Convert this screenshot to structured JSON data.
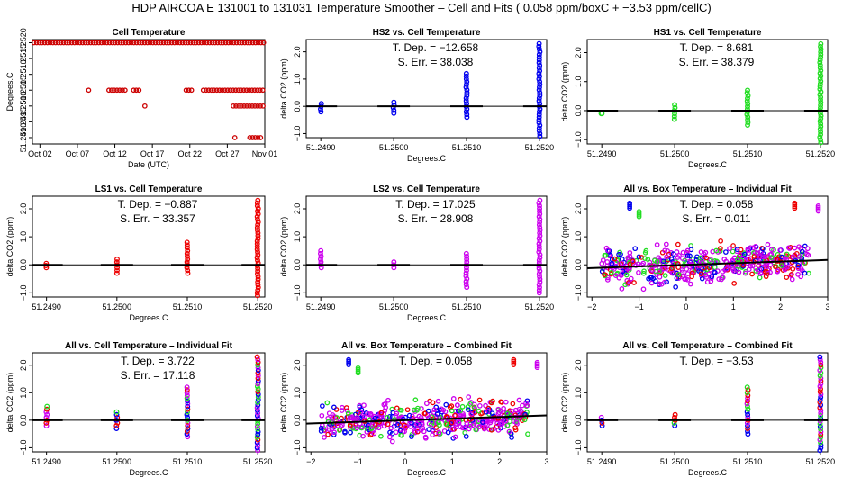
{
  "figure": {
    "title": "HDP   AIRCOA E   131001 to 131031   Temperature Smoother – Cell and Fits ( 0.058   ppm/boxC +   −3.53   ppm/cellC)"
  },
  "chart_data": [
    {
      "type": "scatter",
      "title": "Cell Temperature",
      "xlabel": "Date (UTC)",
      "ylabel": "Degrees.C",
      "x_ticks": [
        "Oct 02",
        "Oct 07",
        "Oct 12",
        "Oct 17",
        "Oct 22",
        "Oct 27",
        "Nov 01"
      ],
      "x_tick_days": [
        2,
        7,
        12,
        17,
        22,
        27,
        32
      ],
      "xlim": [
        1,
        32
      ],
      "y_ticks": [
        "51.2490",
        "51.2495",
        "51.2500",
        "51.2505",
        "51.2510",
        "51.2515",
        "51.2520"
      ],
      "y_tick_values": [
        51.249,
        51.2495,
        51.25,
        51.2505,
        51.251,
        51.2515,
        51.252
      ],
      "ylim": [
        51.2488,
        51.2521
      ],
      "color": "#cc0000",
      "series": [
        {
          "segments": [
            {
              "y": 51.252,
              "x_from": 1.2,
              "x_to": 32.0
            },
            {
              "y": 51.2505,
              "x_from": 8.5,
              "x_to": 8.7
            },
            {
              "y": 51.2505,
              "x_from": 11.2,
              "x_to": 13.5
            },
            {
              "y": 51.2505,
              "x_from": 14.5,
              "x_to": 15.5
            },
            {
              "y": 51.2505,
              "x_from": 21.5,
              "x_to": 22.5
            },
            {
              "y": 51.2505,
              "x_from": 23.8,
              "x_to": 32.0
            },
            {
              "y": 51.25,
              "x_from": 16.0,
              "x_to": 16.2
            },
            {
              "y": 51.25,
              "x_from": 27.8,
              "x_to": 32.0
            },
            {
              "y": 51.249,
              "x_from": 28.0,
              "x_to": 28.3
            },
            {
              "y": 51.249,
              "x_from": 30.0,
              "x_to": 31.8
            }
          ]
        }
      ]
    },
    {
      "type": "scatter",
      "title": "HS2 vs. Cell Temperature",
      "xlabel": "Degrees.C",
      "ylabel": "delta CO2 (ppm)",
      "x_ticks": [
        "51.2490",
        "51.2500",
        "51.2510",
        "51.2520"
      ],
      "x_tick_values": [
        51.249,
        51.25,
        51.251,
        51.252
      ],
      "xlim": [
        51.2488,
        51.2521
      ],
      "y_ticks": [
        "−1.0",
        "0.0",
        "1.0",
        "2.0"
      ],
      "y_tick_values": [
        -1,
        0,
        1,
        2
      ],
      "ylim": [
        -1.15,
        2.45
      ],
      "annotations": [
        "T. Dep. =  −12.658",
        "S. Err. =  38.038"
      ],
      "fit": {
        "slope": -12.658
      },
      "color": "#0000ee",
      "series": [
        {
          "columns": [
            {
              "x": 51.249,
              "y_from": -0.2,
              "y_to": 0.1
            },
            {
              "x": 51.25,
              "y_from": -0.25,
              "y_to": 0.15
            },
            {
              "x": 51.251,
              "y_from": -0.4,
              "y_to": 1.2
            },
            {
              "x": 51.252,
              "y_from": -1.1,
              "y_to": 2.3
            }
          ]
        }
      ]
    },
    {
      "type": "scatter",
      "title": "HS1 vs. Cell Temperature",
      "xlabel": "Degrees.C",
      "ylabel": "delta CO2 (ppm)",
      "x_ticks": [
        "51.2490",
        "51.2500",
        "51.2510",
        "51.2520"
      ],
      "x_tick_values": [
        51.249,
        51.25,
        51.251,
        51.252
      ],
      "xlim": [
        51.2488,
        51.2521
      ],
      "y_ticks": [
        "−1.0",
        "0.0",
        "1.0",
        "2.0"
      ],
      "y_tick_values": [
        -1,
        0,
        1,
        2
      ],
      "ylim": [
        -1.15,
        2.45
      ],
      "annotations": [
        "T. Dep. =  8.681",
        "S. Err. =  38.379"
      ],
      "fit": {
        "slope": 8.681
      },
      "color": "#22dd22",
      "series": [
        {
          "columns": [
            {
              "x": 51.249,
              "y_from": -0.1,
              "y_to": -0.1
            },
            {
              "x": 51.25,
              "y_from": -0.3,
              "y_to": 0.2
            },
            {
              "x": 51.251,
              "y_from": -0.5,
              "y_to": 0.7
            },
            {
              "x": 51.252,
              "y_from": -1.1,
              "y_to": 2.3
            }
          ]
        }
      ]
    },
    {
      "type": "scatter",
      "title": "LS1 vs. Cell Temperature",
      "xlabel": "Degrees.C",
      "ylabel": "delta CO2 (ppm)",
      "x_ticks": [
        "51.2490",
        "51.2500",
        "51.2510",
        "51.2520"
      ],
      "x_tick_values": [
        51.249,
        51.25,
        51.251,
        51.252
      ],
      "xlim": [
        51.2488,
        51.2521
      ],
      "y_ticks": [
        "−1.0",
        "0.0",
        "1.0",
        "2.0"
      ],
      "y_tick_values": [
        -1,
        0,
        1,
        2
      ],
      "ylim": [
        -1.15,
        2.45
      ],
      "annotations": [
        "T. Dep. =  −0.887",
        "S. Err. =  33.357"
      ],
      "fit": {
        "slope": -0.887
      },
      "color": "#ee0000",
      "series": [
        {
          "columns": [
            {
              "x": 51.249,
              "y_from": -0.1,
              "y_to": 0.05
            },
            {
              "x": 51.25,
              "y_from": -0.3,
              "y_to": 0.2
            },
            {
              "x": 51.251,
              "y_from": -0.3,
              "y_to": 0.8
            },
            {
              "x": 51.252,
              "y_from": -1.1,
              "y_to": 2.3
            }
          ]
        }
      ]
    },
    {
      "type": "scatter",
      "title": "LS2 vs. Cell Temperature",
      "xlabel": "Degrees.C",
      "ylabel": "delta CO2 (ppm)",
      "x_ticks": [
        "51.2490",
        "51.2500",
        "51.2510",
        "51.2520"
      ],
      "x_tick_values": [
        51.249,
        51.25,
        51.251,
        51.252
      ],
      "xlim": [
        51.2488,
        51.2521
      ],
      "y_ticks": [
        "−1.0",
        "0.0",
        "1.0",
        "2.0"
      ],
      "y_tick_values": [
        -1,
        0,
        1,
        2
      ],
      "ylim": [
        -1.15,
        2.45
      ],
      "annotations": [
        "T. Dep. =  17.025",
        "S. Err. =  28.908"
      ],
      "fit": {
        "slope": 17.025
      },
      "color": "#cc00ee",
      "series": [
        {
          "columns": [
            {
              "x": 51.249,
              "y_from": -0.1,
              "y_to": 0.5
            },
            {
              "x": 51.25,
              "y_from": -0.1,
              "y_to": 0.1
            },
            {
              "x": 51.251,
              "y_from": -0.8,
              "y_to": 0.4
            },
            {
              "x": 51.252,
              "y_from": -1.0,
              "y_to": 2.3
            }
          ]
        }
      ]
    },
    {
      "type": "scatter",
      "title": "All vs. Box Temperature – Individual Fit",
      "xlabel": "",
      "ylabel": "delta CO2 (ppm)",
      "x_ticks": [
        "−2",
        "−1",
        "0",
        "1",
        "2",
        "3"
      ],
      "x_tick_values": [
        -2,
        -1,
        0,
        1,
        2,
        3
      ],
      "xlim": [
        -2.1,
        3.0
      ],
      "y_ticks": [
        "−1.0",
        "0.0",
        "1.0",
        "2.0"
      ],
      "y_tick_values": [
        -1,
        0,
        1,
        2
      ],
      "ylim": [
        -1.15,
        2.45
      ],
      "annotations": [
        "T. Dep. =  0.058",
        "S. Err. =  0.011"
      ],
      "fit": {
        "slope": 0.058
      },
      "series": [
        {
          "name": "HS2",
          "color": "#0000ee"
        },
        {
          "name": "HS1",
          "color": "#22dd22"
        },
        {
          "name": "LS1",
          "color": "#ee0000"
        },
        {
          "name": "LS2",
          "color": "#cc00ee"
        }
      ],
      "cloud": {
        "x_range": [
          -1.8,
          2.6
        ],
        "y_center": 0.0,
        "y_spread": 0.6
      },
      "outliers": [
        {
          "x": -1.2,
          "y": 2.2
        },
        {
          "x": -1.0,
          "y": 1.9
        },
        {
          "x": 2.3,
          "y": 2.2
        },
        {
          "x": 2.8,
          "y": 2.1
        }
      ]
    },
    {
      "type": "scatter",
      "title": "All vs. Cell Temperature – Individual Fit",
      "xlabel": "Degrees.C",
      "ylabel": "delta CO2 (ppm)",
      "x_ticks": [
        "51.2490",
        "51.2500",
        "51.2510",
        "51.2520"
      ],
      "x_tick_values": [
        51.249,
        51.25,
        51.251,
        51.252
      ],
      "xlim": [
        51.2488,
        51.2521
      ],
      "y_ticks": [
        "−1.0",
        "0.0",
        "1.0",
        "2.0"
      ],
      "y_tick_values": [
        -1,
        0,
        1,
        2
      ],
      "ylim": [
        -1.15,
        2.45
      ],
      "annotations": [
        "T. Dep. =  3.722",
        "S. Err. =  17.118"
      ],
      "fit": {
        "slope": 3.722
      },
      "series": [
        {
          "name": "HS2",
          "color": "#0000ee"
        },
        {
          "name": "HS1",
          "color": "#22dd22"
        },
        {
          "name": "LS1",
          "color": "#ee0000"
        },
        {
          "name": "LS2",
          "color": "#cc00ee"
        }
      ],
      "column_sets": [
        {
          "x": 51.249,
          "y_from": -0.2,
          "y_to": 0.5
        },
        {
          "x": 51.25,
          "y_from": -0.3,
          "y_to": 0.3
        },
        {
          "x": 51.251,
          "y_from": -0.6,
          "y_to": 1.2
        },
        {
          "x": 51.252,
          "y_from": -1.1,
          "y_to": 2.3
        }
      ]
    },
    {
      "type": "scatter",
      "title": "All vs. Box Temperature – Combined Fit",
      "xlabel": "Degrees.C",
      "ylabel": "delta CO2 (ppm)",
      "x_ticks": [
        "−2",
        "−1",
        "0",
        "1",
        "2",
        "3"
      ],
      "x_tick_values": [
        -2,
        -1,
        0,
        1,
        2,
        3
      ],
      "xlim": [
        -2.1,
        3.0
      ],
      "y_ticks": [
        "−1.0",
        "0.0",
        "1.0",
        "2.0"
      ],
      "y_tick_values": [
        -1,
        0,
        1,
        2
      ],
      "ylim": [
        -1.15,
        2.45
      ],
      "annotations": [
        "T. Dep. =  0.058"
      ],
      "fit": {
        "slope": 0.058
      },
      "series": [
        {
          "name": "HS2",
          "color": "#0000ee"
        },
        {
          "name": "HS1",
          "color": "#22dd22"
        },
        {
          "name": "LS1",
          "color": "#ee0000"
        },
        {
          "name": "LS2",
          "color": "#cc00ee"
        }
      ],
      "cloud": {
        "x_range": [
          -1.8,
          2.6
        ],
        "y_center": 0.0,
        "y_spread": 0.6
      },
      "outliers": [
        {
          "x": -1.2,
          "y": 2.2
        },
        {
          "x": -1.0,
          "y": 1.9
        },
        {
          "x": 2.3,
          "y": 2.2
        },
        {
          "x": 2.8,
          "y": 2.1
        }
      ]
    },
    {
      "type": "scatter",
      "title": "All vs. Cell Temperature – Combined Fit",
      "xlabel": "Degrees.C",
      "ylabel": "delta CO2 (ppm)",
      "x_ticks": [
        "51.2490",
        "51.2500",
        "51.2510",
        "51.2520"
      ],
      "x_tick_values": [
        51.249,
        51.25,
        51.251,
        51.252
      ],
      "xlim": [
        51.2488,
        51.2521
      ],
      "y_ticks": [
        "−1.0",
        "0.0",
        "1.0",
        "2.0"
      ],
      "y_tick_values": [
        -1,
        0,
        1,
        2
      ],
      "ylim": [
        -1.15,
        2.45
      ],
      "annotations": [
        "T. Dep. =  −3.53"
      ],
      "fit": {
        "slope": -3.53
      },
      "series": [
        {
          "name": "HS2",
          "color": "#0000ee"
        },
        {
          "name": "HS1",
          "color": "#22dd22"
        },
        {
          "name": "LS1",
          "color": "#ee0000"
        },
        {
          "name": "LS2",
          "color": "#cc00ee"
        }
      ],
      "column_sets": [
        {
          "x": 51.249,
          "y_from": -0.2,
          "y_to": 0.1
        },
        {
          "x": 51.25,
          "y_from": -0.2,
          "y_to": 0.2
        },
        {
          "x": 51.251,
          "y_from": -0.5,
          "y_to": 1.2
        },
        {
          "x": 51.252,
          "y_from": -1.1,
          "y_to": 2.3
        }
      ]
    }
  ]
}
